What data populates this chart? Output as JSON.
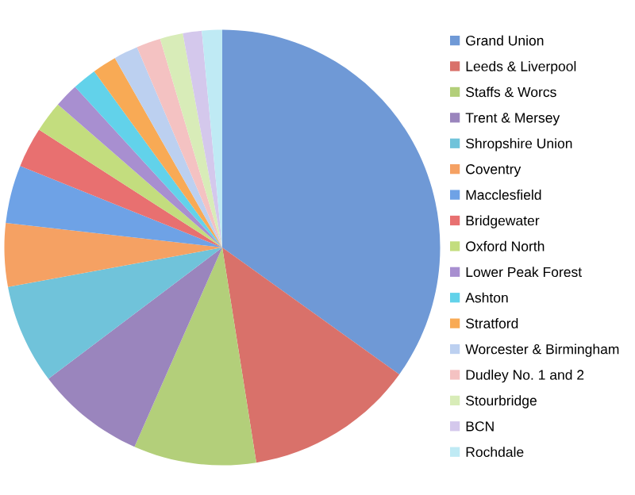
{
  "chart_data": {
    "type": "pie",
    "legend": "right",
    "categories": [
      "Grand Union",
      "Leeds & Liverpool",
      "Staffs & Worcs",
      "Trent & Mersey",
      "Shropshire Union",
      "Coventry",
      "Macclesfield",
      "Bridgewater",
      "Oxford North",
      "Lower Peak Forest",
      "Ashton",
      "Stratford",
      "Worcester & Birmingham",
      "Dudley No. 1 and 2",
      "Stourbridge",
      "BCN",
      "Rochdale"
    ],
    "values": [
      34.9,
      12.6,
      9.1,
      8.1,
      7.4,
      4.7,
      4.3,
      3.0,
      2.3,
      1.8,
      1.8,
      1.8,
      1.8,
      1.8,
      1.7,
      1.4,
      1.5
    ],
    "colors": [
      "#6f99d6",
      "#d9716a",
      "#b3cf7a",
      "#9a85bd",
      "#70c3da",
      "#f5a163",
      "#6ea2e6",
      "#e87070",
      "#c3dd7e",
      "#a88fd0",
      "#62d2ea",
      "#f8aa55",
      "#bcd0f0",
      "#f4c2c2",
      "#d8ecb8",
      "#d4c8ec",
      "#bfeaf4"
    ]
  }
}
